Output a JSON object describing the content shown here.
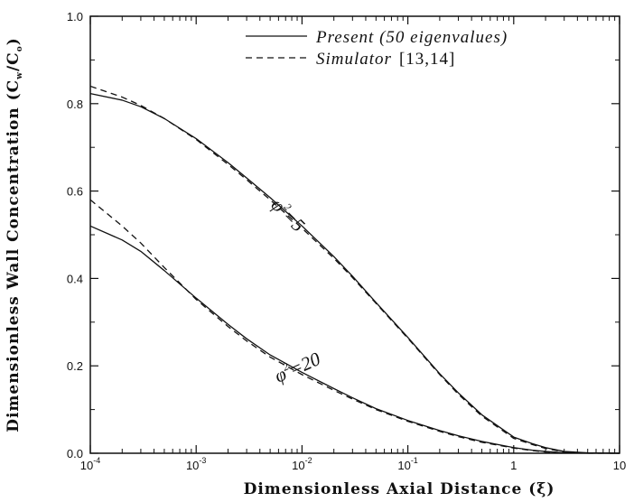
{
  "chart_data": {
    "type": "line",
    "xlabel": "Dimensionless Axial Distance (ξ)",
    "ylabel_main": "Dimensionless Wall Concentration (C",
    "ylabel_sub_w": "w",
    "ylabel_slash": "/C",
    "ylabel_sub_o": "o",
    "ylabel_close": ")",
    "xscale": "log",
    "xlim": [
      0.0001,
      10
    ],
    "ylim": [
      0.0,
      1.0
    ],
    "x_ticks": [
      {
        "value": 0.0001,
        "base": "10",
        "exp": "-4"
      },
      {
        "value": 0.001,
        "base": "10",
        "exp": "-3"
      },
      {
        "value": 0.01,
        "base": "10",
        "exp": "-2"
      },
      {
        "value": 0.1,
        "base": "10",
        "exp": "-1"
      },
      {
        "value": 1,
        "base": "1",
        "exp": ""
      },
      {
        "value": 10,
        "base": "10",
        "exp": ""
      }
    ],
    "y_ticks": [
      "0.0",
      "0.2",
      "0.4",
      "0.6",
      "0.8",
      "1.0"
    ],
    "legend": {
      "position": "top-right",
      "entries": [
        {
          "label": "Present (50 eigenvalues)",
          "ref": "",
          "style": "solid"
        },
        {
          "label": "Simulator",
          "ref": "[13,14]",
          "style": "dashed"
        }
      ]
    },
    "annotations": [
      {
        "base": "φ",
        "sup": "2",
        "text": "=5",
        "x": 0.0085,
        "y": 0.475
      },
      {
        "base": "φ",
        "sup": "2",
        "text": "=20",
        "x": 0.0085,
        "y": 0.175
      }
    ],
    "series": [
      {
        "name": "Present (50 eigenvalues)",
        "style": "solid",
        "group": "φ²=5",
        "x": [
          0.0001,
          0.0002,
          0.0003,
          0.0005,
          0.001,
          0.002,
          0.003,
          0.005,
          0.01,
          0.02,
          0.03,
          0.05,
          0.1,
          0.2,
          0.3,
          0.5,
          1,
          1.5,
          2,
          3,
          5,
          10
        ],
        "y": [
          0.823,
          0.808,
          0.793,
          0.766,
          0.72,
          0.665,
          0.63,
          0.585,
          0.52,
          0.45,
          0.405,
          0.345,
          0.265,
          0.182,
          0.138,
          0.088,
          0.037,
          0.022,
          0.013,
          0.004,
          0.001,
          0.0
        ]
      },
      {
        "name": "Simulator",
        "style": "dashed",
        "group": "φ²=5",
        "x": [
          0.0001,
          0.0002,
          0.0003,
          0.0005,
          0.001,
          0.002,
          0.003,
          0.005,
          0.01,
          0.02,
          0.03,
          0.05,
          0.1,
          0.2,
          0.3,
          0.5,
          1,
          1.5,
          2,
          3,
          5,
          10
        ],
        "y": [
          0.84,
          0.815,
          0.796,
          0.766,
          0.718,
          0.661,
          0.626,
          0.58,
          0.515,
          0.446,
          0.402,
          0.343,
          0.263,
          0.18,
          0.135,
          0.085,
          0.034,
          0.02,
          0.011,
          0.003,
          0.0005,
          0.0
        ]
      },
      {
        "name": "Present (50 eigenvalues)",
        "style": "solid",
        "group": "φ²=20",
        "x": [
          0.0001,
          0.0002,
          0.0003,
          0.0005,
          0.001,
          0.002,
          0.003,
          0.005,
          0.01,
          0.02,
          0.03,
          0.05,
          0.1,
          0.2,
          0.3,
          0.5,
          1,
          1.5,
          2,
          3,
          5,
          10
        ],
        "y": [
          0.52,
          0.488,
          0.462,
          0.418,
          0.355,
          0.295,
          0.262,
          0.225,
          0.185,
          0.148,
          0.127,
          0.102,
          0.075,
          0.052,
          0.04,
          0.027,
          0.013,
          0.007,
          0.004,
          0.001,
          0.0002,
          0.0
        ]
      },
      {
        "name": "Simulator",
        "style": "dashed",
        "group": "φ²=20",
        "x": [
          0.0001,
          0.0002,
          0.0003,
          0.0005,
          0.001,
          0.002,
          0.003,
          0.005,
          0.01,
          0.02,
          0.03,
          0.05,
          0.1,
          0.2,
          0.3,
          0.5,
          1,
          1.5,
          2,
          3,
          5,
          10
        ],
        "y": [
          0.58,
          0.52,
          0.481,
          0.425,
          0.352,
          0.29,
          0.257,
          0.22,
          0.18,
          0.144,
          0.124,
          0.1,
          0.073,
          0.05,
          0.038,
          0.025,
          0.012,
          0.006,
          0.003,
          0.0008,
          0.0001,
          0.0
        ]
      }
    ]
  }
}
